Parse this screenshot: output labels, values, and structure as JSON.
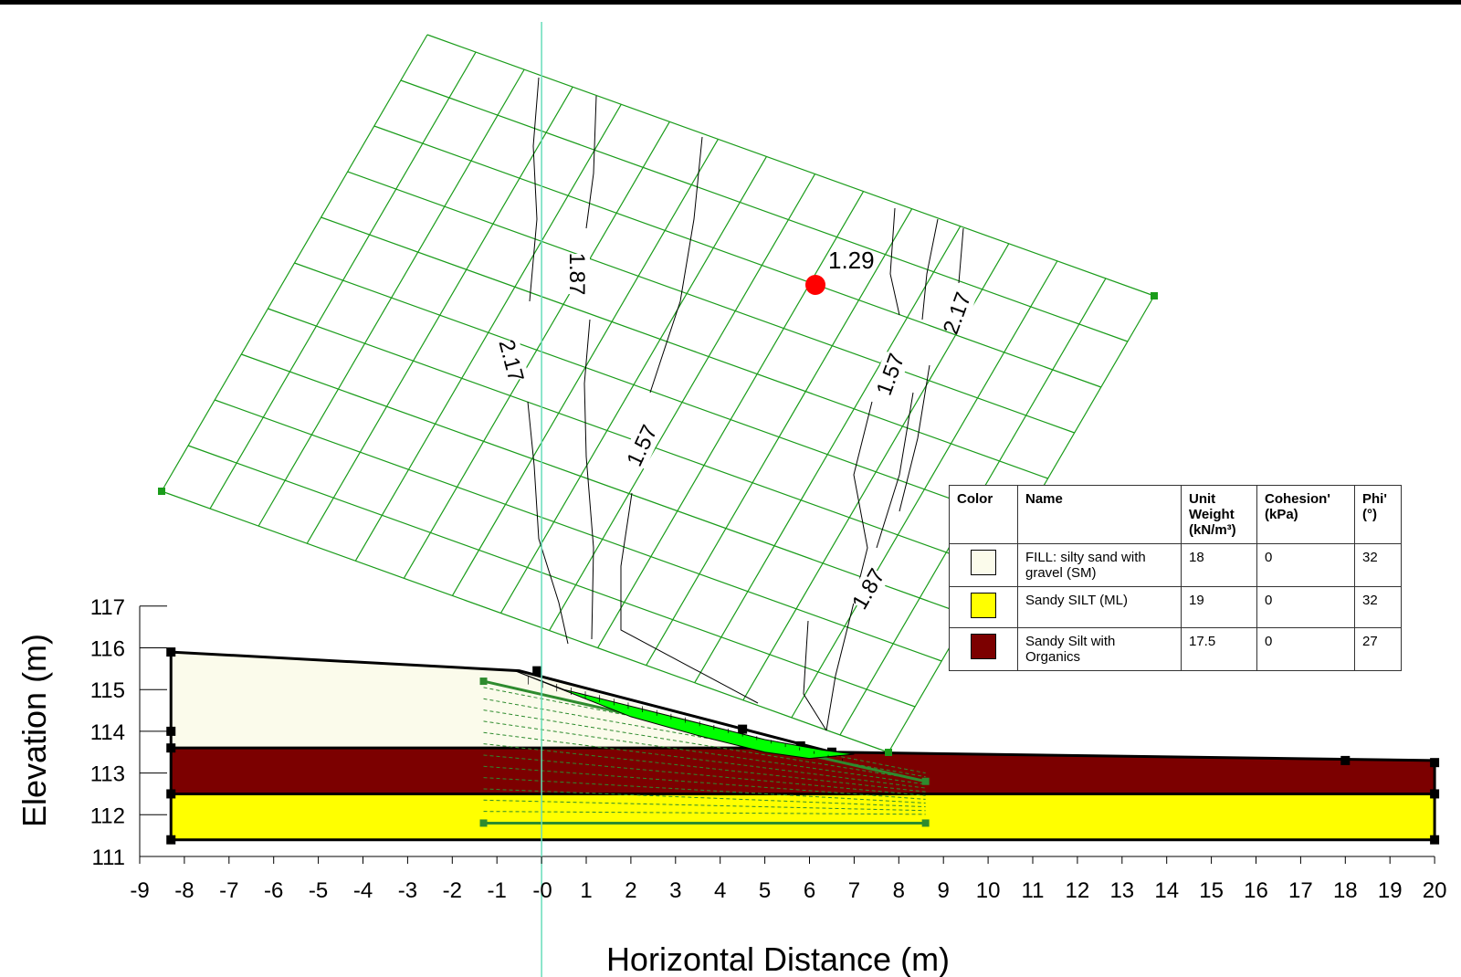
{
  "chart_data": {
    "type": "slope-stability",
    "xlabel": "Horizontal Distance (m)",
    "ylabel": "Elevation (m)",
    "xlim": [
      -9,
      20
    ],
    "ylim": [
      111,
      117
    ],
    "x_ticks": [
      "-9",
      "-8",
      "-7",
      "-6",
      "-5",
      "-4",
      "-3",
      "-2",
      "-1",
      "-0",
      "0",
      "1",
      "2",
      "3",
      "4",
      "5",
      "6",
      "7",
      "8",
      "9",
      "10",
      "11",
      "12",
      "13",
      "14",
      "15",
      "16",
      "17",
      "18",
      "19",
      "20"
    ],
    "y_ticks": [
      "117",
      "116",
      "115",
      "114",
      "113",
      "112",
      "111"
    ],
    "ground_surface": [
      [
        -8.3,
        115.9
      ],
      [
        -0.5,
        115.45
      ],
      [
        6.5,
        113.5
      ],
      [
        20,
        113.3
      ]
    ],
    "layer_boundaries": {
      "fill_base": 113.6,
      "organics_base": 112.5,
      "model_base": 111.4
    },
    "critical_fos": "1.29",
    "contour_labels": [
      "1.87",
      "2.17",
      "1.57",
      "1.57",
      "2.17",
      "1.87"
    ],
    "colors": {
      "fill": "#fbfbeb",
      "organics": "#7c0000",
      "silt": "#ffff00",
      "grid": "#1a9c1a",
      "slip_surface": "#00ff00",
      "min_point": "#ff0000",
      "axis_line": "#66ddbb"
    }
  },
  "legend": {
    "headers": {
      "color": "Color",
      "name": "Name",
      "unit_weight": "Unit Weight (kN/m³)",
      "cohesion": "Cohesion' (kPa)",
      "phi": "Phi' (°)"
    },
    "materials": [
      {
        "name": "FILL: silty sand with gravel (SM)",
        "unit_weight": "18",
        "cohesion": "0",
        "phi": "32",
        "color": "#fbfbeb"
      },
      {
        "name": "Sandy SILT (ML)",
        "unit_weight": "19",
        "cohesion": "0",
        "phi": "32",
        "color": "#ffff00"
      },
      {
        "name": "Sandy Silt with Organics",
        "unit_weight": "17.5",
        "cohesion": "0",
        "phi": "27",
        "color": "#7c0000"
      }
    ]
  }
}
